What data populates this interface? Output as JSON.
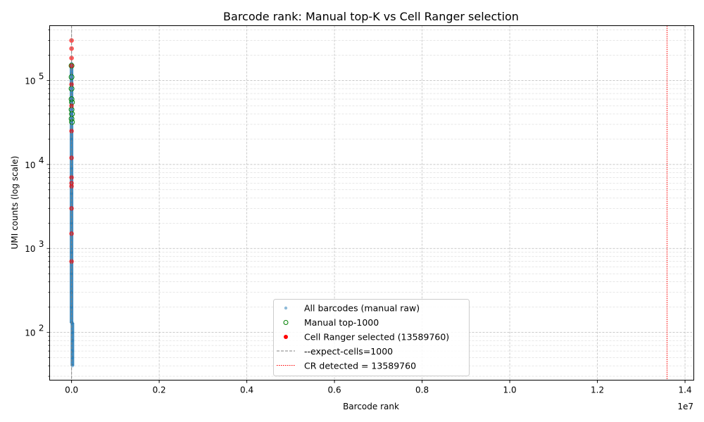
{
  "chart_data": {
    "type": "scatter",
    "title": "Barcode rank: Manual top-K vs Cell Ranger selection",
    "xlabel": "Barcode rank",
    "ylabel": "UMI counts (log scale)",
    "x_scale_note": "1e7",
    "xlim": [
      -0.05,
      1.42
    ],
    "ylim": [
      27,
      450000
    ],
    "y_scale": "log",
    "x_ticks": [
      "0.0",
      "0.2",
      "0.4",
      "0.6",
      "0.8",
      "1.0",
      "1.2",
      "1.4"
    ],
    "x_tick_values": [
      0.0,
      0.2,
      0.4,
      0.6,
      0.8,
      1.0,
      1.2,
      1.4
    ],
    "y_ticks": [
      {
        "value": 100,
        "base": "10",
        "exp": "2"
      },
      {
        "value": 1000,
        "base": "10",
        "exp": "3"
      },
      {
        "value": 10000,
        "base": "10",
        "exp": "4"
      },
      {
        "value": 100000,
        "base": "10",
        "exp": "5"
      }
    ],
    "grid": true,
    "legend_position": "lower-center",
    "series": [
      {
        "name": "All barcodes (manual raw)",
        "kind": "points",
        "color": "#1f77b4",
        "points": [
          [
            0.0,
            160000
          ],
          [
            0.0,
            120000
          ],
          [
            0.0,
            90000
          ],
          [
            0.0,
            60000
          ],
          [
            0.0,
            40000
          ],
          [
            0.0,
            20000
          ],
          [
            0.0,
            9000
          ],
          [
            0.0,
            4500
          ],
          [
            0.0,
            2000
          ],
          [
            0.0,
            900
          ],
          [
            0.0,
            500
          ],
          [
            0.0,
            300
          ],
          [
            0.0,
            200
          ],
          [
            0.0,
            130
          ],
          [
            0.002,
            130
          ],
          [
            0.002,
            100
          ],
          [
            0.002,
            80
          ],
          [
            0.002,
            60
          ],
          [
            0.002,
            50
          ],
          [
            0.002,
            40
          ]
        ]
      },
      {
        "name": "Manual top-1000",
        "kind": "points",
        "color": "#008000",
        "points": [
          [
            0.0,
            150000
          ],
          [
            0.0,
            110000
          ],
          [
            0.0,
            80000
          ],
          [
            0.0,
            60000
          ],
          [
            0.0,
            45000
          ],
          [
            0.0,
            35000
          ],
          [
            0.001,
            55000
          ],
          [
            0.001,
            40000
          ],
          [
            0.001,
            32000
          ]
        ]
      },
      {
        "name": "Cell Ranger selected (13589760)",
        "kind": "points",
        "color": "#ff0000",
        "points": [
          [
            0.0,
            300000
          ],
          [
            0.0,
            240000
          ],
          [
            0.0,
            185000
          ],
          [
            0.0,
            150000
          ],
          [
            0.0,
            90000
          ],
          [
            0.0,
            50000
          ],
          [
            0.0,
            25000
          ],
          [
            0.0,
            12000
          ],
          [
            0.0,
            7000
          ],
          [
            0.0,
            6000
          ],
          [
            0.0,
            5500
          ],
          [
            0.0,
            3000
          ],
          [
            0.0,
            1500
          ],
          [
            0.0,
            700
          ]
        ]
      },
      {
        "name": "--expect-cells=1000",
        "kind": "vline",
        "x": 0.0001,
        "color": "#808080",
        "style": "dashed"
      },
      {
        "name": "CR detected = 13589760",
        "kind": "vline",
        "x": 1.358976,
        "color": "#ff0000",
        "style": "dotted"
      }
    ]
  }
}
